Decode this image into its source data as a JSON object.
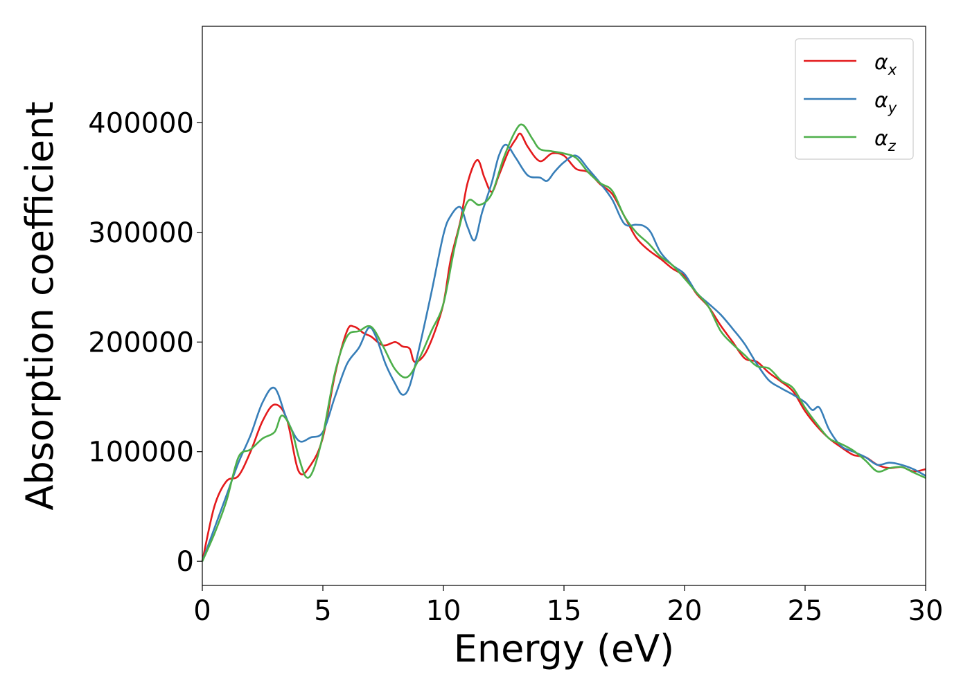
{
  "chart_data": {
    "type": "line",
    "title": "",
    "xlabel": "Energy (eV)",
    "ylabel": "Absorption coefficient",
    "xlim": [
      0,
      30
    ],
    "ylim": [
      -22000,
      488000
    ],
    "xticks": [
      0,
      5,
      10,
      15,
      20,
      25,
      30
    ],
    "xtick_labels": [
      "0",
      "5",
      "10",
      "15",
      "20",
      "25",
      "30"
    ],
    "yticks": [
      0,
      100000,
      200000,
      300000,
      400000
    ],
    "ytick_labels": [
      "0",
      "100000",
      "200000",
      "300000",
      "400000"
    ],
    "grid": false,
    "legend_position": "top-right",
    "series": [
      {
        "name": "α",
        "subscript": "x",
        "color": "#e41a1c",
        "x": [
          0,
          0.5,
          1,
          1.5,
          2,
          2.5,
          3,
          3.5,
          4,
          4.5,
          5,
          5.5,
          6,
          6.3,
          6.7,
          7,
          7.5,
          8,
          8.3,
          8.6,
          8.8,
          9.2,
          9.6,
          10,
          10.3,
          10.7,
          11,
          11.4,
          11.7,
          12,
          12.3,
          12.7,
          13,
          13.2,
          13.5,
          14,
          14.5,
          15,
          15.5,
          16,
          16.5,
          17,
          17.5,
          18,
          18.5,
          19,
          19.5,
          20,
          20.5,
          21,
          21.5,
          22,
          22.5,
          23,
          23.5,
          24,
          24.5,
          25,
          25.5,
          26,
          26.5,
          27,
          27.5,
          28,
          28.5,
          29,
          29.5,
          30
        ],
        "y": [
          0,
          50000,
          73000,
          78000,
          100000,
          128000,
          143000,
          130000,
          82000,
          88000,
          113000,
          170000,
          210000,
          214000,
          208000,
          205000,
          197000,
          200000,
          196000,
          194000,
          182000,
          188000,
          207000,
          235000,
          275000,
          310000,
          345000,
          366000,
          350000,
          337000,
          352000,
          374000,
          385000,
          390000,
          378000,
          365000,
          372000,
          370000,
          358000,
          355000,
          344000,
          335000,
          315000,
          295000,
          284000,
          276000,
          267000,
          260000,
          244000,
          232000,
          215000,
          200000,
          185000,
          182000,
          172000,
          164000,
          155000,
          137000,
          123000,
          112000,
          104000,
          97000,
          95000,
          88000,
          85000,
          86000,
          82000,
          84000
        ]
      },
      {
        "name": "α",
        "subscript": "y",
        "color": "#377eb8",
        "x": [
          0,
          0.5,
          1,
          1.5,
          2,
          2.5,
          3,
          3.5,
          4,
          4.5,
          5,
          5.5,
          6,
          6.5,
          6.9,
          7.2,
          7.6,
          8,
          8.3,
          8.6,
          9,
          9.5,
          10,
          10.3,
          10.7,
          11,
          11.3,
          11.6,
          12,
          12.3,
          12.6,
          13,
          13.5,
          14,
          14.3,
          14.6,
          15,
          15.5,
          16,
          16.5,
          17,
          17.5,
          18,
          18.3,
          18.6,
          19,
          19.5,
          20,
          20.5,
          21,
          21.5,
          22,
          22.5,
          23,
          23.5,
          24,
          24.5,
          25,
          25.3,
          25.6,
          26,
          26.5,
          27,
          27.5,
          28,
          28.5,
          29,
          29.5,
          30
        ],
        "y": [
          0,
          30000,
          60000,
          90000,
          115000,
          145000,
          158000,
          130000,
          110000,
          113000,
          118000,
          150000,
          180000,
          195000,
          213000,
          205000,
          180000,
          162000,
          152000,
          160000,
          195000,
          245000,
          298000,
          315000,
          323000,
          305000,
          293000,
          318000,
          345000,
          370000,
          380000,
          368000,
          352000,
          350000,
          347000,
          355000,
          364000,
          370000,
          358000,
          345000,
          330000,
          308000,
          307000,
          306000,
          300000,
          282000,
          270000,
          262000,
          245000,
          235000,
          225000,
          212000,
          198000,
          180000,
          165000,
          158000,
          152000,
          145000,
          138000,
          140000,
          120000,
          105000,
          100000,
          95000,
          88000,
          90000,
          88000,
          84000,
          78000
        ]
      },
      {
        "name": "α",
        "subscript": "z",
        "color": "#4daf4a",
        "x": [
          0,
          0.5,
          1,
          1.5,
          2,
          2.5,
          3,
          3.3,
          3.7,
          4,
          4.3,
          4.6,
          5,
          5.5,
          6,
          6.5,
          7,
          7.5,
          8,
          8.5,
          9,
          9.5,
          10,
          10.5,
          11,
          11.5,
          12,
          12.5,
          13,
          13.3,
          13.7,
          14,
          14.5,
          15,
          15.5,
          16,
          16.5,
          17,
          17.5,
          18,
          18.5,
          19,
          19.5,
          20,
          20.5,
          21,
          21.5,
          22,
          22.5,
          23,
          23.5,
          24,
          24.5,
          25,
          25.5,
          26,
          26.5,
          27,
          27.5,
          28,
          28.5,
          29,
          29.5,
          30
        ],
        "y": [
          0,
          25000,
          55000,
          95000,
          102000,
          112000,
          118000,
          133000,
          120000,
          95000,
          77000,
          83000,
          115000,
          172000,
          205000,
          210000,
          214000,
          196000,
          175000,
          168000,
          185000,
          210000,
          235000,
          290000,
          328000,
          325000,
          335000,
          368000,
          393000,
          398000,
          385000,
          376000,
          374000,
          372000,
          368000,
          355000,
          345000,
          338000,
          315000,
          300000,
          290000,
          278000,
          270000,
          258000,
          245000,
          232000,
          210000,
          198000,
          188000,
          178000,
          176000,
          165000,
          158000,
          140000,
          125000,
          112000,
          107000,
          101000,
          92000,
          82000,
          85000,
          86000,
          81000,
          76000
        ]
      }
    ]
  }
}
